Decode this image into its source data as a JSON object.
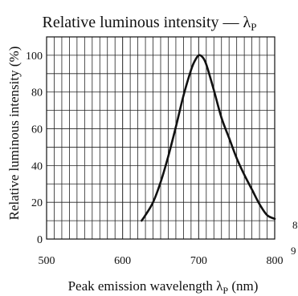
{
  "chart_data": {
    "type": "line",
    "title": "Relative luminous intensity — λ",
    "title_subscript": "P",
    "xlabel": "Peak emission wavelength  λ",
    "xlabel_subscript": "P",
    "xlabel_unit": " (nm)",
    "ylabel": "Relative luminous intensity  (%)",
    "xlim": [
      500,
      800
    ],
    "ylim": [
      0,
      110
    ],
    "x_ticks": [
      500,
      600,
      700,
      800
    ],
    "y_ticks": [
      0,
      20,
      40,
      60,
      80,
      100
    ],
    "x_tick_labels": [
      "500",
      "600",
      "700",
      "800"
    ],
    "y_tick_labels": [
      "0",
      "20",
      "40",
      "60",
      "80",
      "100"
    ],
    "grid": true,
    "edge_fragments": [
      "8",
      "9"
    ],
    "series": [
      {
        "x": [
          625,
          630,
          640,
          650,
          660,
          670,
          680,
          690,
          695,
          700,
          705,
          710,
          720,
          730,
          740,
          750,
          760,
          770,
          780,
          790,
          800
        ],
        "y": [
          10,
          13,
          20,
          31,
          45,
          61,
          78,
          92,
          97,
          100,
          99,
          95,
          81,
          66,
          55,
          44,
          35,
          27,
          19,
          13,
          11
        ]
      }
    ],
    "line_color": "#111111",
    "grid_color": "#222222"
  }
}
